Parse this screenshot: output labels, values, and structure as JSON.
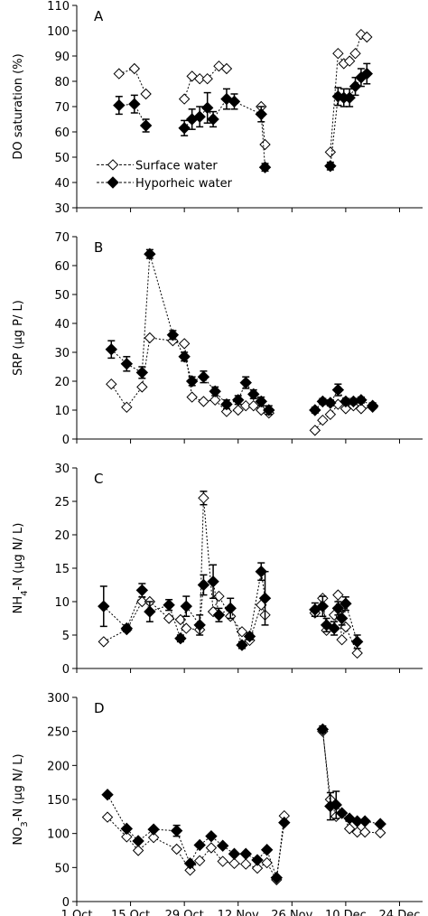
{
  "chart_data": {
    "type": "line",
    "x_axis": {
      "ticks": [
        0,
        14,
        28,
        42,
        56,
        70,
        84
      ],
      "tick_labels": [
        "1 Oct",
        "15 Oct",
        "29 Oct",
        "12 Nov",
        "26 Nov",
        "10 Dec",
        "24 Dec"
      ],
      "xlim": [
        0,
        90
      ]
    },
    "legend": {
      "placement": "inside panel A, lower-left",
      "entries": [
        "Surface water",
        "Hyporheic water"
      ]
    },
    "colors": {
      "surface_fill": "#ffffff",
      "hyporheic_fill": "#000000",
      "line": "#000000"
    },
    "panels": [
      {
        "letter": "A",
        "ylabel": "DO saturation (%)",
        "ylim": [
          30,
          110
        ],
        "yticks": [
          30,
          40,
          50,
          60,
          70,
          80,
          90,
          100,
          110
        ],
        "series": [
          {
            "name": "Surface water",
            "points": [
              [
                11,
                83
              ],
              [
                15,
                85
              ],
              [
                18,
                75
              ],
              [
                28,
                73
              ],
              [
                30,
                82
              ],
              [
                32,
                81
              ],
              [
                34,
                81
              ],
              [
                37,
                86
              ],
              [
                39,
                85
              ],
              [
                48,
                70
              ],
              [
                49,
                55
              ],
              [
                66,
                52
              ],
              [
                68,
                91
              ],
              [
                69.5,
                87
              ],
              [
                71,
                88
              ],
              [
                72.5,
                91
              ],
              [
                74,
                98.5
              ],
              [
                75.5,
                97.5
              ]
            ],
            "err": [
              0,
              0,
              0,
              0,
              0,
              0,
              0,
              0,
              0,
              0,
              0,
              0,
              0,
              0,
              0,
              0,
              0,
              0
            ]
          },
          {
            "name": "Hyporheic water",
            "points": [
              [
                11,
                70.5
              ],
              [
                15,
                71
              ],
              [
                18,
                62.5
              ],
              [
                28,
                61.5
              ],
              [
                30,
                65
              ],
              [
                32,
                66
              ],
              [
                34,
                69.5
              ],
              [
                35.5,
                65
              ],
              [
                39,
                73
              ],
              [
                41,
                72
              ],
              [
                48,
                67
              ],
              [
                49,
                46
              ],
              [
                66,
                46.5
              ],
              [
                68,
                74
              ],
              [
                69.5,
                73.5
              ],
              [
                71,
                73.5
              ],
              [
                72.5,
                78
              ],
              [
                74,
                81.5
              ],
              [
                75.5,
                83
              ]
            ],
            "err": [
              3.5,
              3.5,
              2.5,
              3,
              4,
              4,
              6,
              3,
              4,
              3,
              3,
              1.5,
              1.5,
              3.5,
              3.5,
              3.5,
              3.5,
              3.5,
              4
            ]
          }
        ]
      },
      {
        "letter": "B",
        "ylabel": "SRP (µg P/ L)",
        "ylim": [
          0,
          70
        ],
        "yticks": [
          0,
          10,
          20,
          30,
          40,
          50,
          60,
          70
        ],
        "series": [
          {
            "name": "Surface water",
            "points": [
              [
                9,
                19
              ],
              [
                13,
                11
              ],
              [
                17,
                18
              ],
              [
                19,
                35
              ],
              [
                25,
                34
              ],
              [
                28,
                33
              ],
              [
                30,
                14.5
              ],
              [
                33,
                13
              ],
              [
                36,
                13.5
              ],
              [
                39,
                9.5
              ],
              [
                42,
                10
              ],
              [
                44,
                11.5
              ],
              [
                46,
                11.5
              ],
              [
                48,
                10
              ],
              [
                50,
                9
              ],
              [
                62,
                3
              ],
              [
                64,
                6.5
              ],
              [
                66,
                8.5
              ],
              [
                68,
                12
              ],
              [
                70,
                10.5
              ],
              [
                72,
                11.5
              ],
              [
                74,
                10.5
              ],
              [
                77,
                11
              ]
            ],
            "err": [
              0,
              0,
              0,
              0,
              0,
              0,
              0,
              0,
              0,
              0,
              0,
              0,
              0,
              0,
              0,
              0,
              0,
              0,
              0,
              0,
              0,
              0,
              0
            ]
          },
          {
            "name": "Hyporheic water",
            "points": [
              [
                9,
                31
              ],
              [
                13,
                26
              ],
              [
                17,
                23
              ],
              [
                19,
                64
              ],
              [
                25,
                36
              ],
              [
                28,
                28.5
              ],
              [
                30,
                20
              ],
              [
                33,
                21.5
              ],
              [
                36,
                16.5
              ],
              [
                39,
                12
              ],
              [
                42,
                13.5
              ],
              [
                44,
                19.5
              ],
              [
                46,
                15.5
              ],
              [
                48,
                13
              ],
              [
                50,
                10
              ],
              [
                62,
                10
              ],
              [
                64,
                13
              ],
              [
                66,
                12.5
              ],
              [
                68,
                17
              ],
              [
                70,
                13
              ],
              [
                72,
                13
              ],
              [
                74,
                13.5
              ],
              [
                77,
                11.5
              ]
            ],
            "err": [
              3,
              2.5,
              2,
              1.5,
              1.5,
              1.5,
              1.5,
              2,
              1.5,
              1.5,
              1.5,
              2,
              1.5,
              1.5,
              1.5,
              1,
              1,
              1,
              2,
              1,
              1,
              1,
              1
            ]
          }
        ]
      },
      {
        "letter": "C",
        "ylabel": "NH4-N (µg N/ L)",
        "ylim": [
          0,
          30
        ],
        "yticks": [
          0,
          5,
          10,
          15,
          20,
          25,
          30
        ],
        "series": [
          {
            "name": "Surface water",
            "points": [
              [
                7,
                4
              ],
              [
                13,
                5.8
              ],
              [
                17,
                10
              ],
              [
                19,
                10
              ],
              [
                24,
                7.5
              ],
              [
                27,
                7.3
              ],
              [
                28.5,
                6
              ],
              [
                32,
                5.8
              ],
              [
                33,
                25.5
              ],
              [
                35.5,
                8.5
              ],
              [
                37,
                10.8
              ],
              [
                40,
                7.8
              ],
              [
                43,
                5.5
              ],
              [
                45,
                4.2
              ],
              [
                48,
                9.5
              ],
              [
                49,
                8
              ],
              [
                62,
                8.3
              ],
              [
                64,
                10.5
              ],
              [
                65,
                5.7
              ],
              [
                67,
                8
              ],
              [
                68,
                11
              ],
              [
                69,
                4.3
              ],
              [
                70,
                6.2
              ],
              [
                73,
                2.3
              ]
            ],
            "err": [
              0,
              0,
              0,
              0,
              0,
              0,
              0,
              0,
              1,
              0,
              0,
              0,
              0,
              0,
              0,
              0,
              0,
              0,
              0,
              0,
              0,
              0,
              0,
              0
            ]
          },
          {
            "name": "Hyporheic water",
            "points": [
              [
                7,
                9.3
              ],
              [
                13,
                6
              ],
              [
                17,
                11.7
              ],
              [
                19,
                8.5
              ],
              [
                24,
                9.5
              ],
              [
                27,
                4.5
              ],
              [
                28.5,
                9.3
              ],
              [
                32,
                6.5
              ],
              [
                33,
                12.5
              ],
              [
                35.5,
                13
              ],
              [
                37,
                8
              ],
              [
                40,
                9
              ],
              [
                43,
                3.5
              ],
              [
                45,
                4.8
              ],
              [
                48,
                14.5
              ],
              [
                49,
                10.5
              ],
              [
                62,
                8.8
              ],
              [
                64,
                9.3
              ],
              [
                65,
                6.5
              ],
              [
                67,
                6
              ],
              [
                68,
                9
              ],
              [
                69,
                7.5
              ],
              [
                70,
                9.7
              ],
              [
                73,
                4
              ]
            ],
            "err": [
              3,
              0.5,
              1,
              1.5,
              0.8,
              0.5,
              1.5,
              1.5,
              1.5,
              2.5,
              1,
              1.5,
              0.5,
              0.5,
              1.3,
              4,
              1,
              1.5,
              1,
              1,
              1,
              1,
              1,
              1
            ]
          }
        ]
      },
      {
        "letter": "D",
        "ylabel": "NO3-N (µg N/ L)",
        "ylim": [
          0,
          300
        ],
        "yticks": [
          0,
          50,
          100,
          150,
          200,
          250,
          300
        ],
        "series": [
          {
            "name": "Surface water",
            "points": [
              [
                8,
                124
              ],
              [
                13,
                95
              ],
              [
                16,
                75
              ],
              [
                20,
                94
              ],
              [
                26,
                77
              ],
              [
                29.5,
                46
              ],
              [
                32,
                60
              ],
              [
                35,
                79
              ],
              [
                38,
                59
              ],
              [
                41,
                56
              ],
              [
                44,
                55
              ],
              [
                47,
                49
              ],
              [
                49.5,
                57
              ],
              [
                52,
                32
              ],
              [
                54,
                126
              ],
              [
                64,
                250
              ],
              [
                66,
                150
              ],
              [
                67.5,
                125
              ],
              [
                69,
                130
              ],
              [
                71,
                107
              ],
              [
                73,
                102
              ],
              [
                75,
                102
              ],
              [
                79,
                101
              ]
            ],
            "err": [
              0,
              0,
              0,
              0,
              0,
              0,
              0,
              0,
              0,
              0,
              0,
              0,
              0,
              0,
              0,
              0,
              0,
              0,
              0,
              0,
              0,
              0,
              0
            ]
          },
          {
            "name": "Hyporheic water",
            "points": [
              [
                8,
                157
              ],
              [
                13,
                107
              ],
              [
                16,
                89
              ],
              [
                20,
                106
              ],
              [
                26,
                104
              ],
              [
                29.5,
                56
              ],
              [
                32,
                83
              ],
              [
                35,
                96
              ],
              [
                38,
                82
              ],
              [
                41,
                70
              ],
              [
                44,
                70
              ],
              [
                47,
                61
              ],
              [
                49.5,
                76
              ],
              [
                52,
                35
              ],
              [
                54,
                116
              ],
              [
                64,
                253
              ],
              [
                66,
                140
              ],
              [
                67.5,
                142
              ],
              [
                69,
                130
              ],
              [
                71,
                122
              ],
              [
                73,
                118
              ],
              [
                75,
                118
              ],
              [
                79,
                114
              ]
            ],
            "err": [
              0,
              0,
              0,
              0,
              8,
              0,
              0,
              0,
              0,
              0,
              0,
              0,
              0,
              0,
              0,
              5,
              20,
              20,
              0,
              0,
              0,
              0,
              0
            ]
          }
        ]
      }
    ]
  }
}
